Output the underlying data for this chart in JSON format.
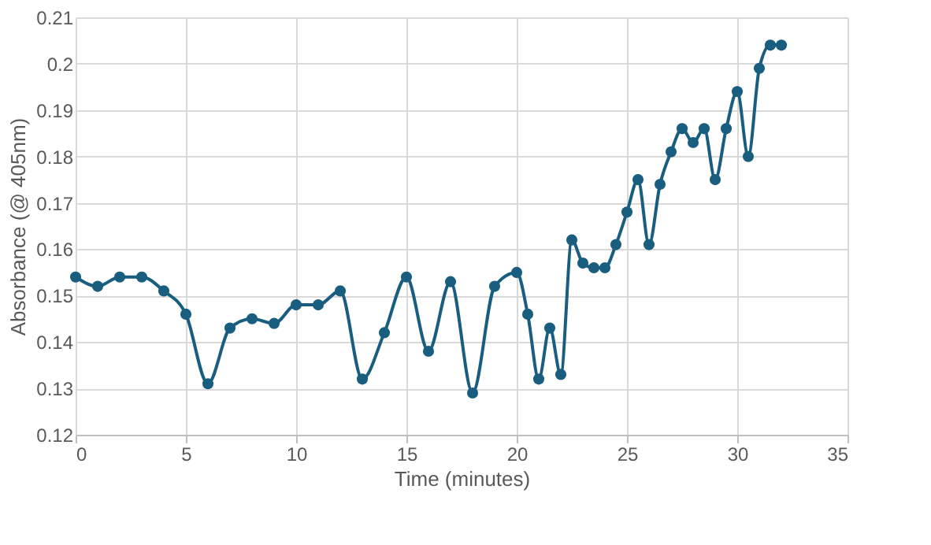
{
  "chart_data": {
    "type": "line",
    "xlabel": "Time (minutes)",
    "ylabel": "Absorbance (@ 405nm)",
    "x": [
      0,
      1,
      2,
      3,
      4,
      5,
      6,
      7,
      8,
      9,
      10,
      11,
      12,
      13,
      14,
      15,
      16,
      17,
      18,
      19,
      20,
      20.5,
      21,
      21.5,
      22,
      22.5,
      23,
      23.5,
      24,
      24.5,
      25,
      25.5,
      26,
      26.5,
      27,
      27.5,
      28,
      28.5,
      29,
      29.5,
      30,
      30.5,
      31,
      31.5,
      32
    ],
    "series": [
      {
        "color": "#195e7f",
        "values": [
          0.154,
          0.152,
          0.154,
          0.154,
          0.151,
          0.146,
          0.131,
          0.143,
          0.145,
          0.144,
          0.148,
          0.148,
          0.151,
          0.132,
          0.142,
          0.154,
          0.138,
          0.153,
          0.129,
          0.152,
          0.155,
          0.146,
          0.132,
          0.143,
          0.133,
          0.162,
          0.157,
          0.156,
          0.156,
          0.161,
          0.168,
          0.175,
          0.161,
          0.174,
          0.181,
          0.186,
          0.183,
          0.186,
          0.175,
          0.186,
          0.194,
          0.18,
          0.199,
          0.204,
          0.204
        ]
      }
    ],
    "xlim": [
      0,
      35
    ],
    "xticks": [
      0,
      5,
      10,
      15,
      20,
      25,
      30,
      35
    ],
    "ylim": [
      0.12,
      0.21
    ],
    "yticks": [
      0.12,
      0.13,
      0.14,
      0.15,
      0.16,
      0.17,
      0.18,
      0.19,
      0.2,
      0.21
    ],
    "grid": true,
    "marker": "circle",
    "line_style": "solid"
  }
}
